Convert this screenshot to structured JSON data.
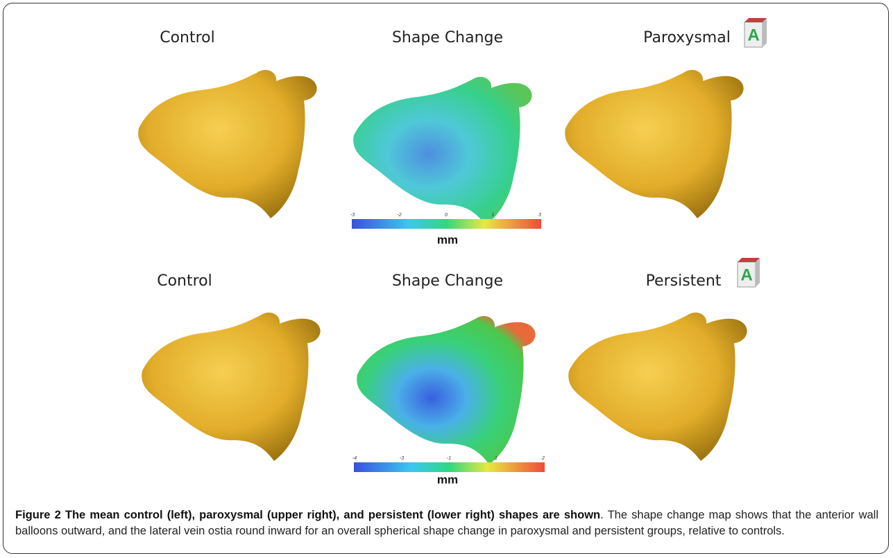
{
  "figure": {
    "panels": [
      {
        "labels": [
          "Control",
          "Shape Change",
          "Paroxysmal"
        ],
        "orientation": "A",
        "colorbar": {
          "ticks": [
            -3,
            -2,
            0,
            1,
            3
          ],
          "unit": "mm"
        }
      },
      {
        "labels": [
          "Control",
          "Shape Change",
          "Persistent"
        ],
        "orientation": "A",
        "colorbar": {
          "ticks": [
            -4,
            -3,
            -1,
            1,
            2
          ],
          "unit": "mm"
        }
      }
    ],
    "caption": {
      "title": "Figure 2 The mean control (left), paroxysmal (upper right), and persistent (lower right) shapes are shown",
      "body": ". The shape change map shows that the anterior wall balloons outward, and the lateral vein ostia round inward for an overall spherical shape change in paroxysmal and persistent groups, relative to controls."
    }
  }
}
